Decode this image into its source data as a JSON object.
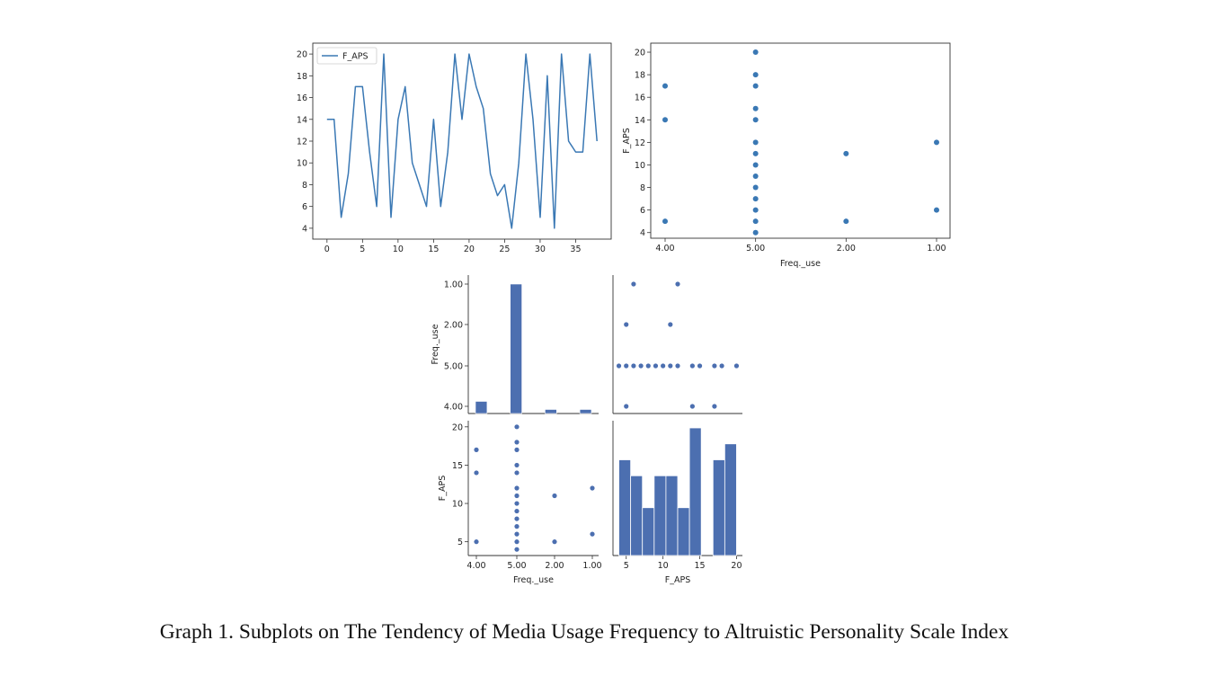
{
  "caption": "Graph 1. Subplots on The Tendency of Media Usage Frequency to Altruistic Personality Scale Index",
  "colors": {
    "line": "#3a78b4",
    "point": "#3a78b4",
    "seaborn": "#4c6fb0",
    "axis": "#333333"
  },
  "chart_data": [
    {
      "id": "line",
      "type": "line",
      "legend": {
        "entries": [
          "F_APS"
        ],
        "placement": "upper-left"
      },
      "xlim": [
        -2,
        40
      ],
      "ylim": [
        3,
        21
      ],
      "xticks": [
        0,
        5,
        10,
        15,
        20,
        25,
        30,
        35
      ],
      "yticks": [
        4,
        6,
        8,
        10,
        12,
        14,
        16,
        18,
        20
      ],
      "series": [
        {
          "name": "F_APS",
          "x": [
            0,
            1,
            2,
            3,
            4,
            5,
            6,
            7,
            8,
            9,
            10,
            11,
            12,
            13,
            14,
            15,
            16,
            17,
            18,
            19,
            20,
            21,
            22,
            23,
            24,
            25,
            26,
            27,
            28,
            29,
            30,
            31,
            32,
            33,
            34,
            35,
            36,
            37,
            38
          ],
          "y": [
            14,
            14,
            5,
            9,
            17,
            17,
            11,
            6,
            20,
            5,
            14,
            17,
            10,
            8,
            6,
            14,
            6,
            11,
            20,
            14,
            20,
            17,
            15,
            9,
            7,
            8,
            4,
            10,
            20,
            14,
            5,
            18,
            4,
            20,
            12,
            11,
            11,
            20,
            12
          ]
        }
      ]
    },
    {
      "id": "scatter",
      "type": "scatter",
      "xlabel": "Freq._use",
      "ylabel": "F_APS",
      "categories": [
        "4.00",
        "5.00",
        "2.00",
        "1.00"
      ],
      "ylim": [
        3.5,
        20.8
      ],
      "yticks": [
        4,
        6,
        8,
        10,
        12,
        14,
        16,
        18,
        20
      ],
      "points": [
        {
          "x": "4.00",
          "y": 17
        },
        {
          "x": "4.00",
          "y": 14
        },
        {
          "x": "4.00",
          "y": 5
        },
        {
          "x": "5.00",
          "y": 20
        },
        {
          "x": "5.00",
          "y": 18
        },
        {
          "x": "5.00",
          "y": 17
        },
        {
          "x": "5.00",
          "y": 15
        },
        {
          "x": "5.00",
          "y": 14
        },
        {
          "x": "5.00",
          "y": 12
        },
        {
          "x": "5.00",
          "y": 11
        },
        {
          "x": "5.00",
          "y": 10
        },
        {
          "x": "5.00",
          "y": 9
        },
        {
          "x": "5.00",
          "y": 8
        },
        {
          "x": "5.00",
          "y": 7
        },
        {
          "x": "5.00",
          "y": 6
        },
        {
          "x": "5.00",
          "y": 5
        },
        {
          "x": "5.00",
          "y": 4
        },
        {
          "x": "2.00",
          "y": 11
        },
        {
          "x": "2.00",
          "y": 5
        },
        {
          "x": "1.00",
          "y": 12
        },
        {
          "x": "1.00",
          "y": 6
        }
      ]
    },
    {
      "id": "pair_hist_freq",
      "type": "bar",
      "ylabel": "Freq._use",
      "ycategories": [
        "1.00",
        "2.00",
        "5.00",
        "4.00"
      ],
      "bins": [
        {
          "from": 0.0,
          "to": 0.3,
          "count": 3
        },
        {
          "from": 0.3,
          "to": 0.6,
          "count": 0
        },
        {
          "from": 0.6,
          "to": 0.9,
          "count": 0
        },
        {
          "from": 0.9,
          "to": 1.2,
          "count": 32
        },
        {
          "from": 1.2,
          "to": 1.5,
          "count": 0
        },
        {
          "from": 1.5,
          "to": 1.8,
          "count": 0
        },
        {
          "from": 1.8,
          "to": 2.1,
          "count": 1
        },
        {
          "from": 2.1,
          "to": 2.4,
          "count": 0
        },
        {
          "from": 2.4,
          "to": 2.7,
          "count": 0
        },
        {
          "from": 2.7,
          "to": 3.0,
          "count": 1
        }
      ],
      "ymax": 32
    },
    {
      "id": "pair_scatter_top",
      "type": "scatter",
      "xlim": [
        3.2,
        20.8
      ],
      "ycategories": [
        "1.00",
        "2.00",
        "5.00",
        "4.00"
      ],
      "points": [
        {
          "x": 6,
          "y": "1.00"
        },
        {
          "x": 12,
          "y": "1.00"
        },
        {
          "x": 5,
          "y": "2.00"
        },
        {
          "x": 11,
          "y": "2.00"
        },
        {
          "x": 4,
          "y": "5.00"
        },
        {
          "x": 5,
          "y": "5.00"
        },
        {
          "x": 6,
          "y": "5.00"
        },
        {
          "x": 7,
          "y": "5.00"
        },
        {
          "x": 8,
          "y": "5.00"
        },
        {
          "x": 9,
          "y": "5.00"
        },
        {
          "x": 10,
          "y": "5.00"
        },
        {
          "x": 11,
          "y": "5.00"
        },
        {
          "x": 12,
          "y": "5.00"
        },
        {
          "x": 14,
          "y": "5.00"
        },
        {
          "x": 15,
          "y": "5.00"
        },
        {
          "x": 17,
          "y": "5.00"
        },
        {
          "x": 18,
          "y": "5.00"
        },
        {
          "x": 20,
          "y": "5.00"
        },
        {
          "x": 5,
          "y": "4.00"
        },
        {
          "x": 14,
          "y": "4.00"
        },
        {
          "x": 17,
          "y": "4.00"
        }
      ]
    },
    {
      "id": "pair_scatter_bottom",
      "type": "scatter",
      "xlabel": "Freq._use",
      "ylabel": "F_APS",
      "categories": [
        "4.00",
        "5.00",
        "2.00",
        "1.00"
      ],
      "ylim": [
        3.2,
        20.8
      ],
      "yticks": [
        5,
        10,
        15,
        20
      ],
      "points": [
        {
          "x": "4.00",
          "y": 17
        },
        {
          "x": "4.00",
          "y": 14
        },
        {
          "x": "4.00",
          "y": 5
        },
        {
          "x": "5.00",
          "y": 20
        },
        {
          "x": "5.00",
          "y": 18
        },
        {
          "x": "5.00",
          "y": 17
        },
        {
          "x": "5.00",
          "y": 15
        },
        {
          "x": "5.00",
          "y": 14
        },
        {
          "x": "5.00",
          "y": 12
        },
        {
          "x": "5.00",
          "y": 11
        },
        {
          "x": "5.00",
          "y": 10
        },
        {
          "x": "5.00",
          "y": 9
        },
        {
          "x": "5.00",
          "y": 8
        },
        {
          "x": "5.00",
          "y": 7
        },
        {
          "x": "5.00",
          "y": 6
        },
        {
          "x": "5.00",
          "y": 5
        },
        {
          "x": "5.00",
          "y": 4
        },
        {
          "x": "2.00",
          "y": 11
        },
        {
          "x": "2.00",
          "y": 5
        },
        {
          "x": "1.00",
          "y": 12
        },
        {
          "x": "1.00",
          "y": 6
        }
      ]
    },
    {
      "id": "pair_hist_aps",
      "type": "bar",
      "xlabel": "F_APS",
      "xlim": [
        3.2,
        20.8
      ],
      "xticks": [
        5,
        10,
        15,
        20
      ],
      "ymax": 8,
      "bins": [
        {
          "from": 4.0,
          "to": 5.6,
          "count": 6
        },
        {
          "from": 5.6,
          "to": 7.2,
          "count": 5
        },
        {
          "from": 7.2,
          "to": 8.8,
          "count": 3
        },
        {
          "from": 8.8,
          "to": 10.4,
          "count": 5
        },
        {
          "from": 10.4,
          "to": 12.0,
          "count": 5
        },
        {
          "from": 12.0,
          "to": 13.6,
          "count": 3
        },
        {
          "from": 13.6,
          "to": 15.2,
          "count": 8
        },
        {
          "from": 15.2,
          "to": 16.8,
          "count": 0
        },
        {
          "from": 16.8,
          "to": 18.4,
          "count": 6
        },
        {
          "from": 18.4,
          "to": 20.0,
          "count": 7
        }
      ]
    }
  ]
}
